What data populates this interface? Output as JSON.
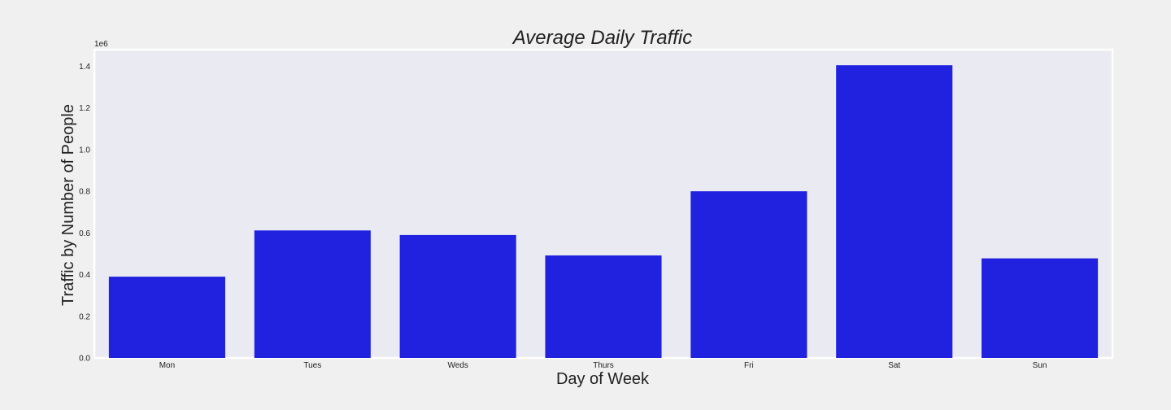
{
  "chart_data": {
    "type": "bar",
    "title": "Average Daily Traffic",
    "xlabel": "Day of Week",
    "ylabel": "Traffic by Number of People",
    "categories": [
      "Mon",
      "Tues",
      "Weds",
      "Thurs",
      "Fri",
      "Sat",
      "Sun"
    ],
    "values": [
      390000,
      612000,
      590000,
      492000,
      800000,
      1405000,
      478000
    ],
    "ylim": [
      0,
      1480000
    ],
    "y_scale_label": "1e6",
    "yticks": [
      0,
      200000,
      400000,
      600000,
      800000,
      1000000,
      1200000,
      1400000
    ],
    "ytick_labels": [
      "0.0",
      "0.2",
      "0.4",
      "0.6",
      "0.8",
      "1.0",
      "1.2",
      "1.4"
    ],
    "grid": false,
    "legend": "none",
    "colors": {
      "bar": "#2121e0",
      "plot_background": "#eaeaf2",
      "figure_background": "#f0f0f0",
      "frame": "#ffffff",
      "text": "#222222"
    }
  }
}
